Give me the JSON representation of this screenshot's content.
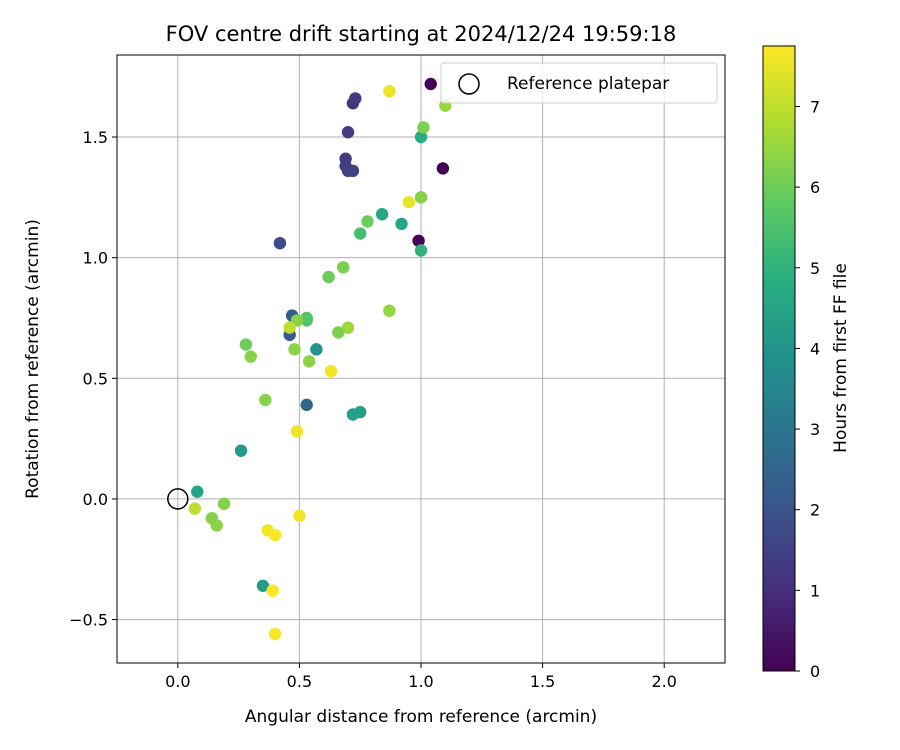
{
  "chart_data": {
    "type": "scatter",
    "title": "FOV centre drift starting at 2024/12/24 19:59:18",
    "xlabel": "Angular distance from reference (arcmin)",
    "ylabel": "Rotation from reference (arcmin)",
    "xlim": [
      -0.25,
      2.25
    ],
    "ylim": [
      -0.68,
      1.84
    ],
    "xticks": [
      "0.0",
      "0.5",
      "1.0",
      "1.5",
      "2.0"
    ],
    "xtick_values": [
      0.0,
      0.5,
      1.0,
      1.5,
      2.0
    ],
    "yticks": [
      "−0.5",
      "0.0",
      "0.5",
      "1.0",
      "1.5"
    ],
    "ytick_values": [
      -0.5,
      0.0,
      0.5,
      1.0,
      1.5
    ],
    "grid": true,
    "legend": {
      "position": "top-right",
      "entries": [
        "Reference platepar"
      ]
    },
    "reference_point": {
      "x": 0.0,
      "y": 0.0
    },
    "colorbar": {
      "label": "Hours from first FF file",
      "colormap": "viridis",
      "range": [
        0,
        7.75
      ],
      "ticks": [
        "0",
        "1",
        "2",
        "3",
        "4",
        "5",
        "6",
        "7"
      ],
      "tick_values": [
        0,
        1,
        2,
        3,
        4,
        5,
        6,
        7
      ]
    },
    "points": [
      {
        "x": 1.04,
        "y": 1.72,
        "c": 0.1
      },
      {
        "x": 1.09,
        "y": 1.37,
        "c": 0.1
      },
      {
        "x": 0.99,
        "y": 1.07,
        "c": 0.1
      },
      {
        "x": 0.72,
        "y": 1.64,
        "c": 1.2
      },
      {
        "x": 0.73,
        "y": 1.66,
        "c": 1.3
      },
      {
        "x": 0.7,
        "y": 1.52,
        "c": 1.4
      },
      {
        "x": 0.69,
        "y": 1.41,
        "c": 1.4
      },
      {
        "x": 0.69,
        "y": 1.38,
        "c": 1.4
      },
      {
        "x": 0.7,
        "y": 1.36,
        "c": 1.5
      },
      {
        "x": 0.72,
        "y": 1.36,
        "c": 1.5
      },
      {
        "x": 0.42,
        "y": 1.06,
        "c": 1.8
      },
      {
        "x": 0.46,
        "y": 0.68,
        "c": 2.2
      },
      {
        "x": 0.47,
        "y": 0.76,
        "c": 2.3
      },
      {
        "x": 0.49,
        "y": 0.74,
        "c": 2.3
      },
      {
        "x": 0.53,
        "y": 0.39,
        "c": 2.6
      },
      {
        "x": 0.57,
        "y": 0.62,
        "c": 4.0
      },
      {
        "x": 0.26,
        "y": 0.2,
        "c": 4.2
      },
      {
        "x": 0.72,
        "y": 0.35,
        "c": 4.4
      },
      {
        "x": 0.75,
        "y": 0.36,
        "c": 4.4
      },
      {
        "x": 0.35,
        "y": -0.36,
        "c": 4.3
      },
      {
        "x": 0.08,
        "y": 0.03,
        "c": 4.5
      },
      {
        "x": 0.92,
        "y": 1.14,
        "c": 4.6
      },
      {
        "x": 0.84,
        "y": 1.18,
        "c": 4.7
      },
      {
        "x": 1.0,
        "y": 1.5,
        "c": 4.8
      },
      {
        "x": 1.0,
        "y": 1.03,
        "c": 5.0
      },
      {
        "x": 0.75,
        "y": 1.1,
        "c": 5.4
      },
      {
        "x": 0.53,
        "y": 0.75,
        "c": 5.6
      },
      {
        "x": 0.53,
        "y": 0.74,
        "c": 5.7
      },
      {
        "x": 0.78,
        "y": 1.15,
        "c": 6.0
      },
      {
        "x": 0.62,
        "y": 0.92,
        "c": 6.0
      },
      {
        "x": 0.68,
        "y": 0.96,
        "c": 6.2
      },
      {
        "x": 0.49,
        "y": 0.74,
        "c": 6.3
      },
      {
        "x": 0.66,
        "y": 0.69,
        "c": 6.2
      },
      {
        "x": 0.28,
        "y": 0.64,
        "c": 6.0
      },
      {
        "x": 0.3,
        "y": 0.59,
        "c": 6.3
      },
      {
        "x": 0.48,
        "y": 0.62,
        "c": 6.4
      },
      {
        "x": 0.54,
        "y": 0.57,
        "c": 6.4
      },
      {
        "x": 0.36,
        "y": 0.41,
        "c": 6.3
      },
      {
        "x": 1.01,
        "y": 1.54,
        "c": 6.2
      },
      {
        "x": 1.0,
        "y": 1.25,
        "c": 6.3
      },
      {
        "x": 1.1,
        "y": 1.63,
        "c": 6.5
      },
      {
        "x": 0.87,
        "y": 0.78,
        "c": 6.5
      },
      {
        "x": 0.7,
        "y": 0.71,
        "c": 6.6
      },
      {
        "x": 0.19,
        "y": -0.02,
        "c": 6.3
      },
      {
        "x": 0.14,
        "y": -0.08,
        "c": 6.3
      },
      {
        "x": 0.16,
        "y": -0.11,
        "c": 6.4
      },
      {
        "x": 0.46,
        "y": 0.71,
        "c": 7.0
      },
      {
        "x": 0.07,
        "y": -0.04,
        "c": 7.0
      },
      {
        "x": 0.87,
        "y": 1.69,
        "c": 7.5
      },
      {
        "x": 0.95,
        "y": 1.23,
        "c": 7.5
      },
      {
        "x": 0.63,
        "y": 0.53,
        "c": 7.6
      },
      {
        "x": 0.49,
        "y": 0.28,
        "c": 7.6
      },
      {
        "x": 0.5,
        "y": -0.07,
        "c": 7.6
      },
      {
        "x": 0.37,
        "y": -0.13,
        "c": 7.6
      },
      {
        "x": 0.4,
        "y": -0.15,
        "c": 7.7
      },
      {
        "x": 0.39,
        "y": -0.38,
        "c": 7.7
      },
      {
        "x": 0.4,
        "y": -0.56,
        "c": 7.7
      }
    ]
  }
}
